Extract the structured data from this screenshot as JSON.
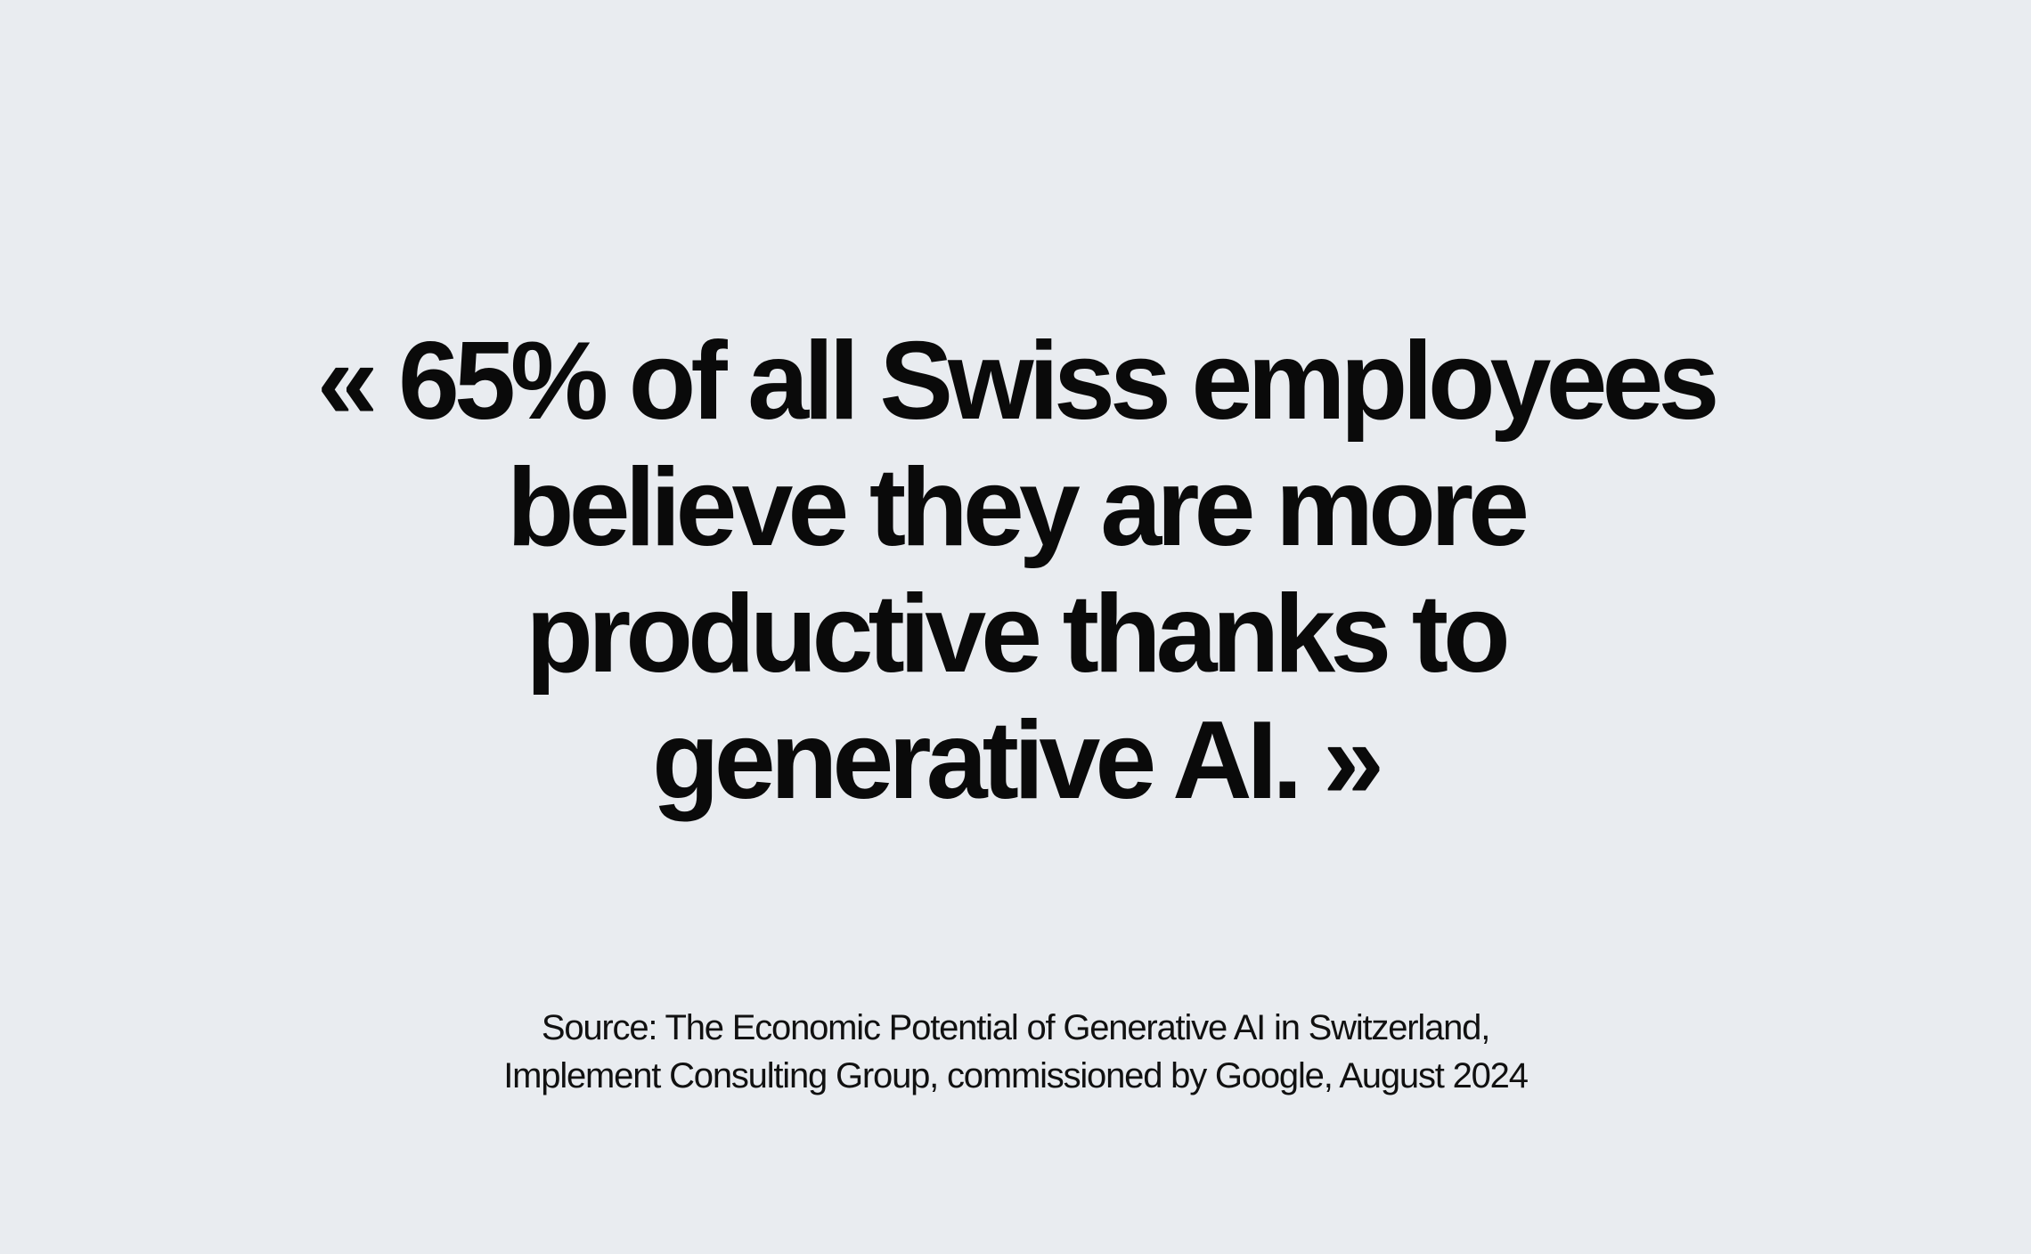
{
  "quote": {
    "lines": [
      "« 65% of all Swiss employees",
      "believe they are more",
      "productive thanks to",
      "generative AI. »"
    ]
  },
  "source": {
    "lines": [
      "Source: The Economic Potential of Generative AI in Switzerland,",
      "Implement Consulting Group, commissioned by Google, August 2024"
    ]
  }
}
